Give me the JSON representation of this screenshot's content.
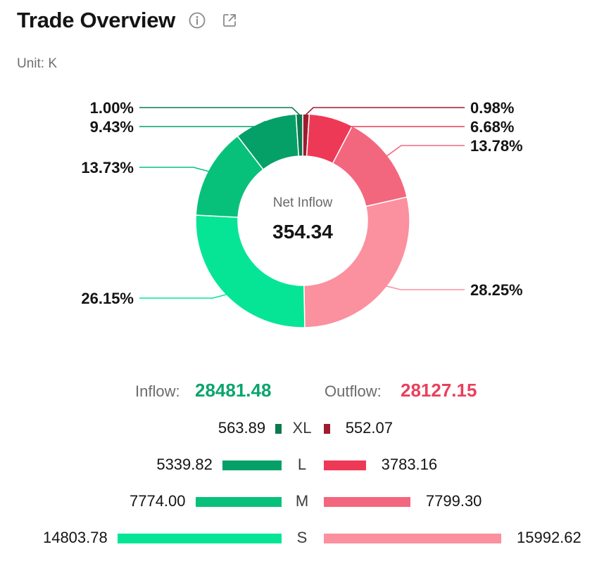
{
  "header": {
    "title": "Trade Overview",
    "info_icon": "info-circle-icon",
    "share_icon": "share-export-icon"
  },
  "unit_label": "Unit: K",
  "chart_data": {
    "type": "pie",
    "center_label": "Net Inflow",
    "center_value": "354.34",
    "slices": [
      {
        "side": "outflow",
        "category": "XL",
        "percent_label": "0.98%",
        "value": 0.98,
        "color": "#9e1c2e"
      },
      {
        "side": "outflow",
        "category": "L",
        "percent_label": "6.68%",
        "value": 6.68,
        "color": "#ee3956"
      },
      {
        "side": "outflow",
        "category": "M",
        "percent_label": "13.78%",
        "value": 13.78,
        "color": "#f3677e"
      },
      {
        "side": "outflow",
        "category": "S",
        "percent_label": "28.25%",
        "value": 28.25,
        "color": "#fb909f"
      },
      {
        "side": "inflow",
        "category": "S",
        "percent_label": "26.15%",
        "value": 26.15,
        "color": "#06e596"
      },
      {
        "side": "inflow",
        "category": "M",
        "percent_label": "13.73%",
        "value": 13.73,
        "color": "#07c17b"
      },
      {
        "side": "inflow",
        "category": "L",
        "percent_label": "9.43%",
        "value": 9.43,
        "color": "#04a068"
      },
      {
        "side": "inflow",
        "category": "XL",
        "percent_label": "1.00%",
        "value": 1.0,
        "color": "#0b7a4f"
      }
    ]
  },
  "totals": {
    "inflow_label": "Inflow:",
    "inflow_value": "28481.48",
    "outflow_label": "Outflow:",
    "outflow_value": "28127.15"
  },
  "rows": [
    {
      "category": "XL",
      "inflow": 563.89,
      "inflow_text": "563.89",
      "outflow": 552.07,
      "outflow_text": "552.07",
      "inflow_color": "#0b7a4f",
      "outflow_color": "#9e1c2e"
    },
    {
      "category": "L",
      "inflow": 5339.82,
      "inflow_text": "5339.82",
      "outflow": 3783.16,
      "outflow_text": "3783.16",
      "inflow_color": "#04a068",
      "outflow_color": "#ee3956"
    },
    {
      "category": "M",
      "inflow": 7774.0,
      "inflow_text": "7774.00",
      "outflow": 7799.3,
      "outflow_text": "7799.30",
      "inflow_color": "#07c17b",
      "outflow_color": "#f3677e"
    },
    {
      "category": "S",
      "inflow": 14803.78,
      "inflow_text": "14803.78",
      "outflow": 15992.62,
      "outflow_text": "15992.62",
      "inflow_color": "#06e596",
      "outflow_color": "#fb909f"
    }
  ]
}
